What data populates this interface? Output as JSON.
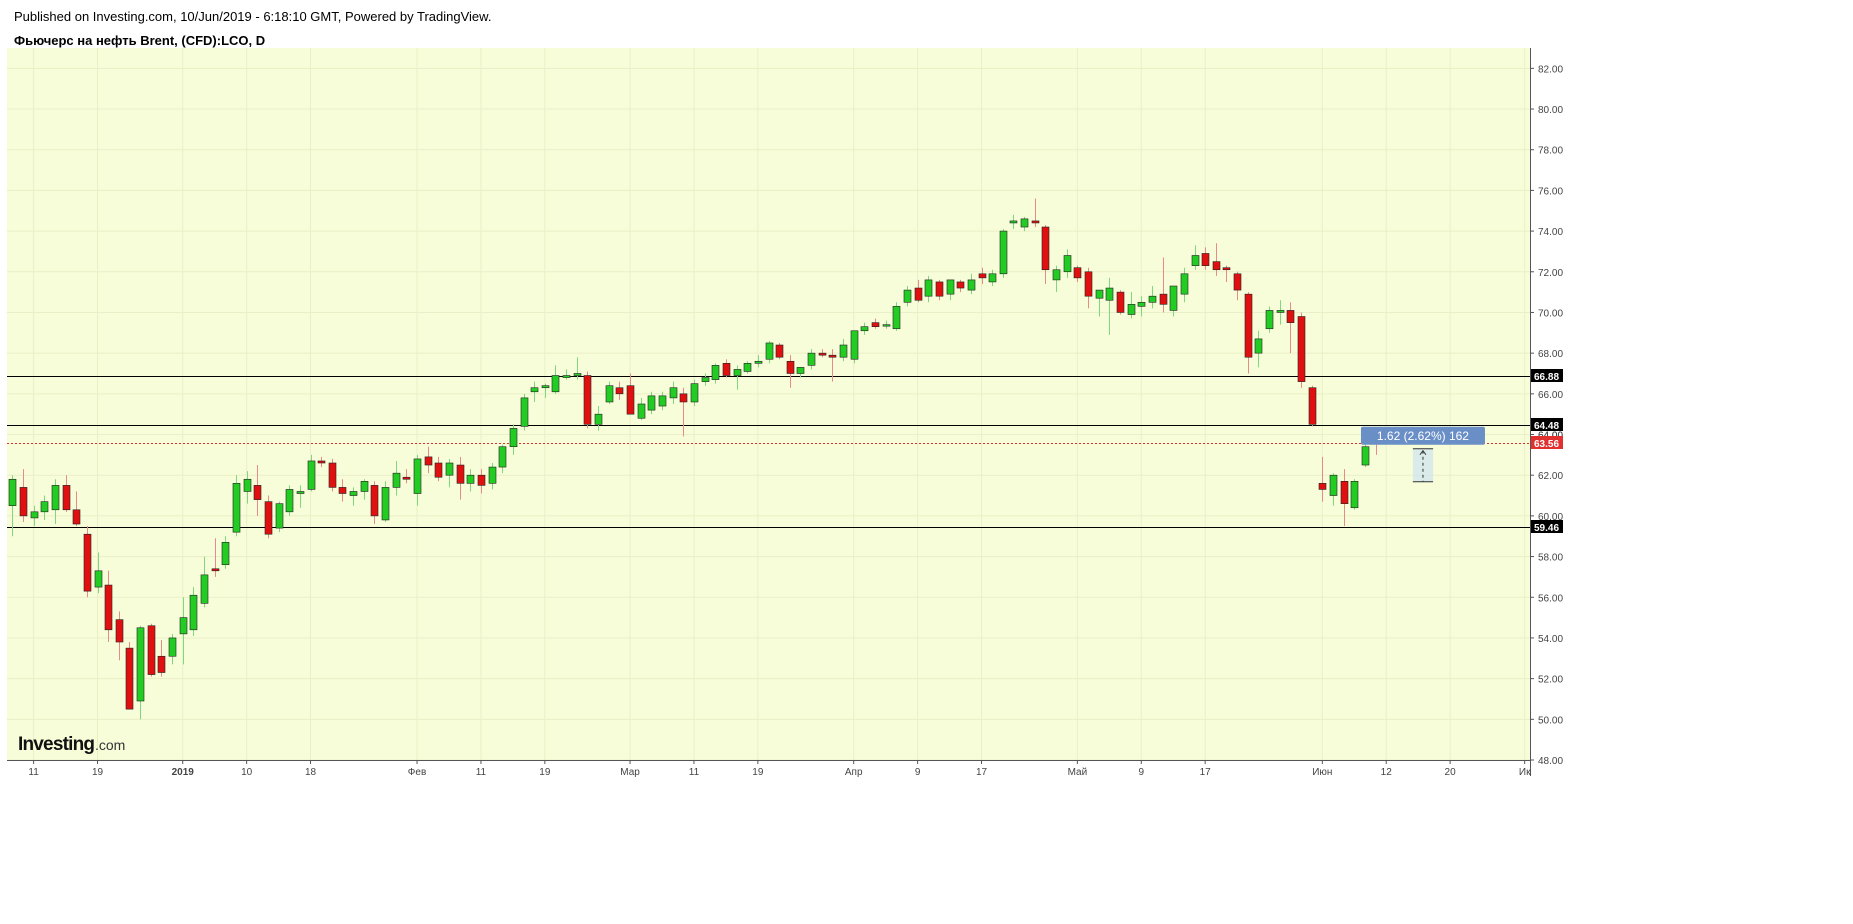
{
  "header": {
    "published": "Published on Investing.com, 10/Jun/2019 - 6:18:10 GMT, Powered by TradingView.",
    "symbol": "Фьючерс на нефть Brent, (CFD):LCO, D"
  },
  "branding": {
    "logo_main": "Investing",
    "logo_suffix": ".com"
  },
  "colors": {
    "background": "#f8fdd9",
    "up": "#22cc22",
    "down": "#e01010",
    "grid": "#e9efc6",
    "last_price": "#e03030",
    "measure": "#6a8fc6"
  },
  "chart_data": {
    "type": "candlestick",
    "title": "Фьючерс на нефть Brent, (CFD):LCO, D",
    "xlabel": "",
    "ylabel": "",
    "ylim": [
      48,
      83
    ],
    "grid": true,
    "y_ticks": [
      "48.00",
      "50.00",
      "52.00",
      "54.00",
      "56.00",
      "58.00",
      "60.00",
      "62.00",
      "64.00",
      "66.00",
      "68.00",
      "70.00",
      "72.00",
      "74.00",
      "76.00",
      "78.00",
      "80.00",
      "82.00"
    ],
    "x_ticks": [
      {
        "label": "11",
        "index": 2
      },
      {
        "label": "19",
        "index": 8
      },
      {
        "label": "2019",
        "index": 16
      },
      {
        "label": "10",
        "index": 22
      },
      {
        "label": "18",
        "index": 28
      },
      {
        "label": "Фев",
        "index": 38
      },
      {
        "label": "11",
        "index": 44
      },
      {
        "label": "19",
        "index": 50
      },
      {
        "label": "Мар",
        "index": 58
      },
      {
        "label": "11",
        "index": 64
      },
      {
        "label": "19",
        "index": 70
      },
      {
        "label": "Апр",
        "index": 79
      },
      {
        "label": "9",
        "index": 85
      },
      {
        "label": "17",
        "index": 91
      },
      {
        "label": "Май",
        "index": 100
      },
      {
        "label": "9",
        "index": 106
      },
      {
        "label": "17",
        "index": 112
      },
      {
        "label": "Июн",
        "index": 123
      },
      {
        "label": "12",
        "index": 129
      },
      {
        "label": "20",
        "index": 135
      },
      {
        "label": "Ик",
        "index": 142
      }
    ],
    "x_slots": 143,
    "candles": [
      {
        "o": 60.5,
        "h": 62.0,
        "l": 59.0,
        "c": 61.8
      },
      {
        "o": 61.4,
        "h": 62.3,
        "l": 59.7,
        "c": 60.0
      },
      {
        "o": 59.9,
        "h": 60.5,
        "l": 59.5,
        "c": 60.2
      },
      {
        "o": 60.2,
        "h": 61.0,
        "l": 59.8,
        "c": 60.7
      },
      {
        "o": 60.3,
        "h": 61.8,
        "l": 59.6,
        "c": 61.5
      },
      {
        "o": 61.5,
        "h": 62.0,
        "l": 60.2,
        "c": 60.3
      },
      {
        "o": 60.3,
        "h": 61.2,
        "l": 59.5,
        "c": 59.6
      },
      {
        "o": 59.1,
        "h": 59.5,
        "l": 56.0,
        "c": 56.3
      },
      {
        "o": 56.5,
        "h": 58.2,
        "l": 56.2,
        "c": 57.3
      },
      {
        "o": 56.6,
        "h": 57.3,
        "l": 53.8,
        "c": 54.4
      },
      {
        "o": 54.9,
        "h": 55.3,
        "l": 52.9,
        "c": 53.8
      },
      {
        "o": 53.5,
        "h": 53.8,
        "l": 50.5,
        "c": 50.5
      },
      {
        "o": 50.9,
        "h": 54.6,
        "l": 50.0,
        "c": 54.5
      },
      {
        "o": 54.6,
        "h": 54.7,
        "l": 52.1,
        "c": 52.2
      },
      {
        "o": 53.1,
        "h": 53.9,
        "l": 52.1,
        "c": 52.3
      },
      {
        "o": 53.1,
        "h": 54.2,
        "l": 52.7,
        "c": 54.0
      },
      {
        "o": 54.2,
        "h": 56.0,
        "l": 52.7,
        "c": 55.0
      },
      {
        "o": 54.4,
        "h": 56.5,
        "l": 54.1,
        "c": 56.1
      },
      {
        "o": 55.7,
        "h": 58.0,
        "l": 55.5,
        "c": 57.1
      },
      {
        "o": 57.4,
        "h": 58.9,
        "l": 57.0,
        "c": 57.3
      },
      {
        "o": 57.6,
        "h": 59.0,
        "l": 57.4,
        "c": 58.7
      },
      {
        "o": 59.2,
        "h": 62.0,
        "l": 59.0,
        "c": 61.6
      },
      {
        "o": 61.2,
        "h": 62.2,
        "l": 60.6,
        "c": 61.8
      },
      {
        "o": 61.5,
        "h": 62.5,
        "l": 60.0,
        "c": 60.8
      },
      {
        "o": 60.7,
        "h": 61.0,
        "l": 58.9,
        "c": 59.1
      },
      {
        "o": 59.4,
        "h": 60.7,
        "l": 59.2,
        "c": 60.6
      },
      {
        "o": 60.2,
        "h": 61.5,
        "l": 60.0,
        "c": 61.3
      },
      {
        "o": 61.1,
        "h": 61.5,
        "l": 60.4,
        "c": 61.2
      },
      {
        "o": 61.3,
        "h": 63.0,
        "l": 61.2,
        "c": 62.7
      },
      {
        "o": 62.7,
        "h": 62.9,
        "l": 62.4,
        "c": 62.6
      },
      {
        "o": 62.6,
        "h": 62.8,
        "l": 61.2,
        "c": 61.4
      },
      {
        "o": 61.4,
        "h": 61.8,
        "l": 60.7,
        "c": 61.1
      },
      {
        "o": 61.0,
        "h": 61.4,
        "l": 60.5,
        "c": 61.2
      },
      {
        "o": 61.2,
        "h": 61.8,
        "l": 60.8,
        "c": 61.7
      },
      {
        "o": 61.5,
        "h": 61.7,
        "l": 59.6,
        "c": 60.0
      },
      {
        "o": 59.8,
        "h": 61.7,
        "l": 59.7,
        "c": 61.4
      },
      {
        "o": 61.4,
        "h": 62.7,
        "l": 61.0,
        "c": 62.1
      },
      {
        "o": 61.9,
        "h": 62.3,
        "l": 61.6,
        "c": 61.8
      },
      {
        "o": 61.1,
        "h": 63.0,
        "l": 60.5,
        "c": 62.8
      },
      {
        "o": 62.9,
        "h": 63.4,
        "l": 62.1,
        "c": 62.5
      },
      {
        "o": 62.6,
        "h": 62.9,
        "l": 61.7,
        "c": 61.9
      },
      {
        "o": 62.0,
        "h": 62.8,
        "l": 61.4,
        "c": 62.6
      },
      {
        "o": 62.5,
        "h": 62.9,
        "l": 60.8,
        "c": 61.6
      },
      {
        "o": 61.6,
        "h": 62.3,
        "l": 61.2,
        "c": 62.0
      },
      {
        "o": 62.0,
        "h": 62.3,
        "l": 61.1,
        "c": 61.5
      },
      {
        "o": 61.6,
        "h": 62.6,
        "l": 61.3,
        "c": 62.4
      },
      {
        "o": 62.4,
        "h": 63.5,
        "l": 62.1,
        "c": 63.4
      },
      {
        "o": 63.4,
        "h": 64.5,
        "l": 63.0,
        "c": 64.3
      },
      {
        "o": 64.4,
        "h": 66.0,
        "l": 64.2,
        "c": 65.8
      },
      {
        "o": 66.1,
        "h": 66.6,
        "l": 65.6,
        "c": 66.3
      },
      {
        "o": 66.3,
        "h": 66.5,
        "l": 65.8,
        "c": 66.4
      },
      {
        "o": 66.1,
        "h": 67.4,
        "l": 66.0,
        "c": 66.9
      },
      {
        "o": 66.8,
        "h": 67.2,
        "l": 66.7,
        "c": 66.9
      },
      {
        "o": 66.9,
        "h": 67.8,
        "l": 66.7,
        "c": 67.0
      },
      {
        "o": 66.9,
        "h": 67.1,
        "l": 64.3,
        "c": 64.5
      },
      {
        "o": 64.5,
        "h": 65.4,
        "l": 64.2,
        "c": 65.0
      },
      {
        "o": 65.6,
        "h": 66.6,
        "l": 65.5,
        "c": 66.4
      },
      {
        "o": 66.3,
        "h": 66.6,
        "l": 65.7,
        "c": 66.0
      },
      {
        "o": 66.4,
        "h": 67.0,
        "l": 65.0,
        "c": 65.0
      },
      {
        "o": 64.8,
        "h": 65.8,
        "l": 64.7,
        "c": 65.5
      },
      {
        "o": 65.2,
        "h": 66.1,
        "l": 65.0,
        "c": 65.9
      },
      {
        "o": 65.4,
        "h": 66.1,
        "l": 65.2,
        "c": 65.9
      },
      {
        "o": 65.8,
        "h": 66.6,
        "l": 65.5,
        "c": 66.3
      },
      {
        "o": 66.0,
        "h": 66.3,
        "l": 63.9,
        "c": 65.6
      },
      {
        "o": 65.6,
        "h": 66.7,
        "l": 65.4,
        "c": 66.5
      },
      {
        "o": 66.6,
        "h": 67.0,
        "l": 66.4,
        "c": 66.8
      },
      {
        "o": 66.7,
        "h": 67.5,
        "l": 66.5,
        "c": 67.4
      },
      {
        "o": 67.5,
        "h": 67.7,
        "l": 66.8,
        "c": 66.9
      },
      {
        "o": 66.9,
        "h": 67.4,
        "l": 66.2,
        "c": 67.2
      },
      {
        "o": 67.1,
        "h": 67.6,
        "l": 67.0,
        "c": 67.5
      },
      {
        "o": 67.5,
        "h": 67.9,
        "l": 67.3,
        "c": 67.6
      },
      {
        "o": 67.7,
        "h": 68.6,
        "l": 67.5,
        "c": 68.5
      },
      {
        "o": 68.4,
        "h": 68.5,
        "l": 67.7,
        "c": 67.8
      },
      {
        "o": 67.6,
        "h": 67.9,
        "l": 66.3,
        "c": 67.0
      },
      {
        "o": 67.0,
        "h": 67.3,
        "l": 66.8,
        "c": 67.3
      },
      {
        "o": 67.4,
        "h": 68.2,
        "l": 67.2,
        "c": 68.0
      },
      {
        "o": 68.0,
        "h": 68.2,
        "l": 67.8,
        "c": 67.9
      },
      {
        "o": 67.9,
        "h": 68.2,
        "l": 66.6,
        "c": 67.8
      },
      {
        "o": 67.8,
        "h": 68.7,
        "l": 67.6,
        "c": 68.4
      },
      {
        "o": 67.7,
        "h": 69.1,
        "l": 67.5,
        "c": 69.1
      },
      {
        "o": 69.1,
        "h": 69.5,
        "l": 68.9,
        "c": 69.3
      },
      {
        "o": 69.5,
        "h": 69.7,
        "l": 69.2,
        "c": 69.3
      },
      {
        "o": 69.4,
        "h": 69.6,
        "l": 69.2,
        "c": 69.4
      },
      {
        "o": 69.2,
        "h": 70.5,
        "l": 69.1,
        "c": 70.3
      },
      {
        "o": 70.5,
        "h": 71.3,
        "l": 70.3,
        "c": 71.1
      },
      {
        "o": 71.2,
        "h": 71.6,
        "l": 70.5,
        "c": 70.6
      },
      {
        "o": 70.8,
        "h": 71.8,
        "l": 70.5,
        "c": 71.6
      },
      {
        "o": 71.5,
        "h": 71.6,
        "l": 70.6,
        "c": 70.8
      },
      {
        "o": 70.9,
        "h": 71.6,
        "l": 70.6,
        "c": 71.6
      },
      {
        "o": 71.5,
        "h": 71.6,
        "l": 71.0,
        "c": 71.2
      },
      {
        "o": 71.1,
        "h": 71.9,
        "l": 70.9,
        "c": 71.6
      },
      {
        "o": 71.9,
        "h": 72.2,
        "l": 71.4,
        "c": 71.7
      },
      {
        "o": 71.5,
        "h": 72.1,
        "l": 71.3,
        "c": 71.9
      },
      {
        "o": 71.9,
        "h": 74.1,
        "l": 71.7,
        "c": 74.0
      },
      {
        "o": 74.4,
        "h": 74.8,
        "l": 74.1,
        "c": 74.5
      },
      {
        "o": 74.2,
        "h": 74.7,
        "l": 74.0,
        "c": 74.6
      },
      {
        "o": 74.5,
        "h": 75.6,
        "l": 74.2,
        "c": 74.4
      },
      {
        "o": 74.2,
        "h": 74.3,
        "l": 71.4,
        "c": 72.1
      },
      {
        "o": 71.6,
        "h": 72.3,
        "l": 71.0,
        "c": 72.1
      },
      {
        "o": 72.0,
        "h": 73.1,
        "l": 71.7,
        "c": 72.8
      },
      {
        "o": 72.2,
        "h": 72.3,
        "l": 71.5,
        "c": 71.7
      },
      {
        "o": 72.0,
        "h": 72.2,
        "l": 70.2,
        "c": 70.8
      },
      {
        "o": 70.7,
        "h": 71.1,
        "l": 69.8,
        "c": 71.1
      },
      {
        "o": 70.6,
        "h": 71.7,
        "l": 68.9,
        "c": 71.2
      },
      {
        "o": 71.0,
        "h": 71.1,
        "l": 69.9,
        "c": 70.0
      },
      {
        "o": 69.9,
        "h": 71.0,
        "l": 69.7,
        "c": 70.4
      },
      {
        "o": 70.3,
        "h": 70.8,
        "l": 69.8,
        "c": 70.5
      },
      {
        "o": 70.5,
        "h": 71.3,
        "l": 70.2,
        "c": 70.8
      },
      {
        "o": 70.9,
        "h": 72.7,
        "l": 70.0,
        "c": 70.4
      },
      {
        "o": 70.1,
        "h": 71.3,
        "l": 69.8,
        "c": 71.3
      },
      {
        "o": 70.9,
        "h": 72.2,
        "l": 70.5,
        "c": 71.9
      },
      {
        "o": 72.3,
        "h": 73.3,
        "l": 72.1,
        "c": 72.8
      },
      {
        "o": 72.9,
        "h": 73.2,
        "l": 72.1,
        "c": 72.3
      },
      {
        "o": 72.5,
        "h": 73.4,
        "l": 71.8,
        "c": 72.1
      },
      {
        "o": 72.2,
        "h": 72.3,
        "l": 71.5,
        "c": 72.1
      },
      {
        "o": 71.9,
        "h": 72.0,
        "l": 70.6,
        "c": 71.1
      },
      {
        "o": 70.9,
        "h": 71.0,
        "l": 67.0,
        "c": 67.8
      },
      {
        "o": 68.0,
        "h": 69.1,
        "l": 67.3,
        "c": 68.7
      },
      {
        "o": 69.2,
        "h": 70.3,
        "l": 69.0,
        "c": 70.1
      },
      {
        "o": 70.0,
        "h": 70.6,
        "l": 69.4,
        "c": 70.1
      },
      {
        "o": 70.1,
        "h": 70.5,
        "l": 68.0,
        "c": 69.5
      },
      {
        "o": 69.8,
        "h": 70.0,
        "l": 66.3,
        "c": 66.6
      },
      {
        "o": 66.3,
        "h": 66.4,
        "l": 64.4,
        "c": 64.5
      },
      {
        "o": 61.6,
        "h": 62.9,
        "l": 60.7,
        "c": 61.3
      },
      {
        "o": 61.0,
        "h": 62.1,
        "l": 60.5,
        "c": 62.0
      },
      {
        "o": 61.7,
        "h": 62.3,
        "l": 59.5,
        "c": 60.6
      },
      {
        "o": 60.4,
        "h": 61.8,
        "l": 60.3,
        "c": 61.7
      },
      {
        "o": 62.5,
        "h": 63.5,
        "l": 62.4,
        "c": 63.4
      },
      {
        "o": 63.7,
        "h": 63.9,
        "l": 63.0,
        "c": 63.56
      }
    ],
    "horizontal_lines": [
      {
        "value": 66.88,
        "label": "66.88",
        "color": "#000000"
      },
      {
        "value": 64.48,
        "label": "64.48",
        "color": "#000000"
      },
      {
        "value": 59.46,
        "label": "59.46",
        "color": "#000000"
      }
    ],
    "last_price": {
      "value": 63.56,
      "label": "63.56",
      "behind_label": "64.00"
    },
    "measure_tool": {
      "label": "1.62 (2.62%) 162",
      "from": 61.68,
      "to": 63.3,
      "start_index": 131.5,
      "end_index": 133.4
    }
  }
}
